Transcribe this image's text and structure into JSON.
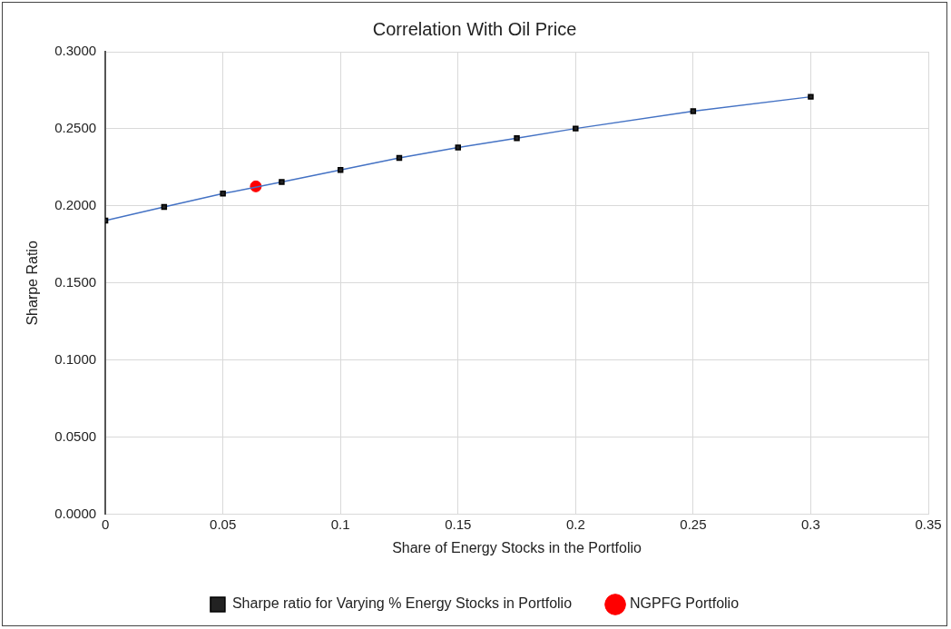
{
  "chart_data": {
    "type": "line",
    "title": "Correlation With Oil Price",
    "xlabel": "Share of Energy Stocks in the Portfolio",
    "ylabel": "Sharpe Ratio",
    "xlim": [
      0,
      0.35
    ],
    "xticks": [
      0,
      0.05,
      0.1,
      0.15,
      0.2,
      0.25,
      0.3,
      0.35
    ],
    "ylim": [
      0,
      0.3
    ],
    "yticks": [
      {
        "value": 0,
        "label": "0.0000"
      },
      {
        "value": 0.05,
        "label": "0.0500"
      },
      {
        "value": 0.1,
        "label": "0.1000"
      },
      {
        "value": 0.15,
        "label": "0.1500"
      },
      {
        "value": 0.2,
        "label": "0.2000"
      },
      {
        "value": 0.25,
        "label": "0.2500"
      },
      {
        "value": 0.3,
        "label": "0.3000"
      }
    ],
    "grid": true,
    "legend": "bottom",
    "line_style": "solid",
    "series": [
      {
        "name": "Sharpe ratio for Varying % Energy Stocks in Portfolio",
        "type": "line",
        "marker": "square",
        "color": "#4472c4",
        "x": [
          0,
          0.025,
          0.05,
          0.075,
          0.1,
          0.125,
          0.15,
          0.175,
          0.2,
          0.25,
          0.3
        ],
        "values": [
          0.1905,
          0.1994,
          0.208,
          0.2155,
          0.2234,
          0.2311,
          0.2379,
          0.244,
          0.2502,
          0.2615,
          0.2708
        ]
      },
      {
        "name": "NGPFG Portfolio",
        "type": "scatter",
        "marker": "circle",
        "color": "#ff0000",
        "x": [
          0.064
        ],
        "values": [
          0.2127
        ]
      }
    ]
  }
}
